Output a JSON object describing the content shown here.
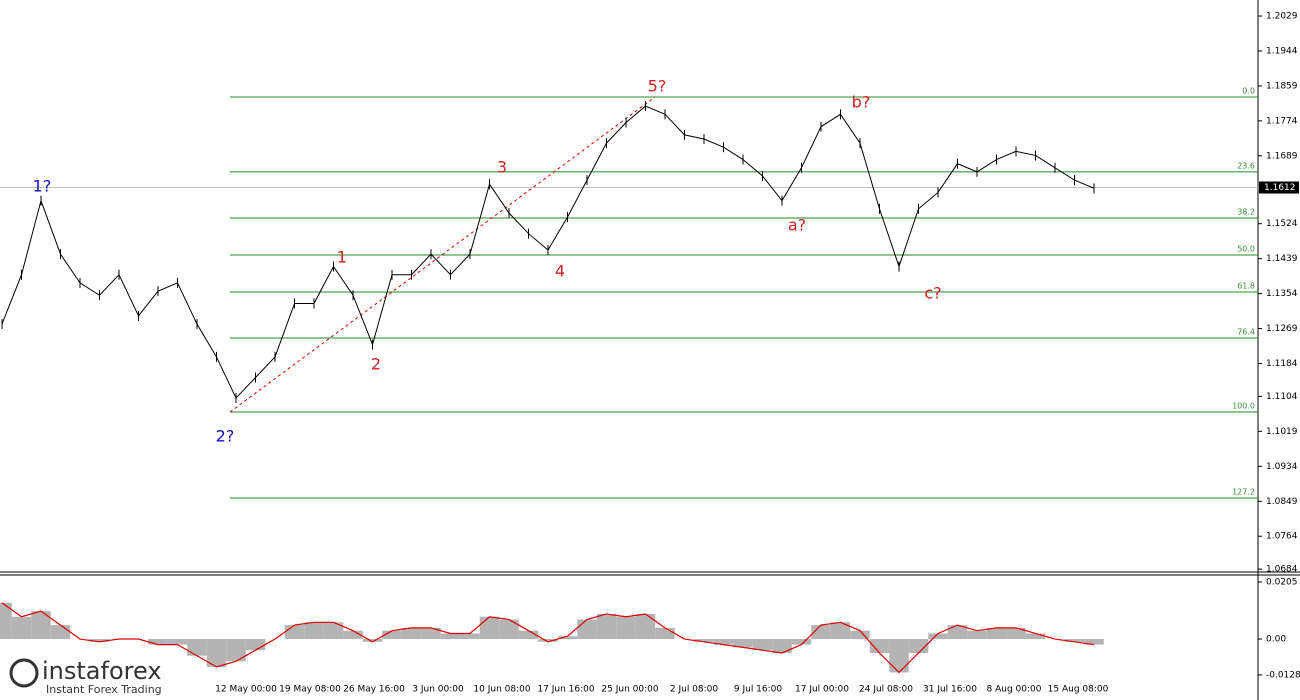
{
  "chart_data": [
    {
      "type": "line",
      "series": [
        {
          "color": "#000000",
          "values": [
            1.128,
            1.14,
            1.158,
            1.145,
            1.138,
            1.135,
            1.14,
            1.13,
            1.136,
            1.138,
            1.128,
            1.12,
            1.11,
            1.115,
            1.12,
            1.133,
            1.133,
            1.142,
            1.135,
            1.123,
            1.14,
            1.14,
            1.145,
            1.14,
            1.145,
            1.162,
            1.155,
            1.15,
            1.146,
            1.154,
            1.163,
            1.172,
            1.177,
            1.181,
            1.179,
            1.174,
            1.173,
            1.171,
            1.168,
            1.164,
            1.158,
            1.166,
            1.176,
            1.179,
            1.172,
            1.156,
            1.142,
            1.156,
            1.16,
            1.167,
            1.165,
            1.168,
            1.17,
            1.169,
            1.166,
            1.163,
            1.161
          ]
        }
      ],
      "ylim": [
        1.0677,
        1.2068
      ],
      "yticks": [
        1.2029,
        1.1944,
        1.1859,
        1.1774,
        1.1689,
        1.1524,
        1.1439,
        1.1354,
        1.1269,
        1.1184,
        1.1104,
        1.1019,
        1.0934,
        1.0849,
        1.0764,
        1.0684
      ],
      "last_price": 1.1612,
      "fib_levels": [
        {
          "value": 1.1832,
          "label": "0.0"
        },
        {
          "value": 1.165,
          "label": "23.6"
        },
        {
          "value": 1.1538,
          "label": "38.2"
        },
        {
          "value": 1.1448,
          "label": "50.0"
        },
        {
          "value": 1.1358,
          "label": "61.8"
        },
        {
          "value": 1.1246,
          "label": "76.4"
        },
        {
          "value": 1.1066,
          "label": "100.0"
        },
        {
          "value": 1.0857,
          "label": "127.2"
        }
      ],
      "fib_color": "#228b22",
      "annotations": [
        {
          "text": "1?",
          "color": "#1010c0"
        },
        {
          "text": "2?",
          "color": "#1010c0"
        },
        {
          "text": "1",
          "color": "#d02020"
        },
        {
          "text": "2",
          "color": "#d02020"
        },
        {
          "text": "3",
          "color": "#d02020"
        },
        {
          "text": "4",
          "color": "#d02020"
        },
        {
          "text": "5?",
          "color": "#d02020"
        },
        {
          "text": "a?",
          "color": "#d02020"
        },
        {
          "text": "b?",
          "color": "#d02020"
        },
        {
          "text": "c?",
          "color": "#d02020"
        }
      ],
      "time_labels": [
        "12 May 00:00",
        "19 May 08:00",
        "26 May 16:00",
        "3 Jun 00:00",
        "10 Jun 08:00",
        "17 Jun 16:00",
        "25 Jun 00:00",
        "2 Jul 08:00",
        "9 Jul 16:00",
        "17 Jul 00:00",
        "24 Jul 08:00",
        "31 Jul 16:00",
        "8 Aug 00:00",
        "15 Aug 08:00"
      ]
    },
    {
      "type": "histogram",
      "series": [
        {
          "color": "#b4b4b4",
          "line_color": "#e00000",
          "values": [
            0.013,
            0.008,
            0.01,
            0.005,
            0.0,
            -0.001,
            0.0,
            0.0,
            -0.002,
            -0.002,
            -0.006,
            -0.01,
            -0.008,
            -0.004,
            0.0,
            0.005,
            0.006,
            0.006,
            0.003,
            -0.001,
            0.003,
            0.004,
            0.004,
            0.002,
            0.002,
            0.008,
            0.007,
            0.003,
            -0.001,
            0.001,
            0.007,
            0.009,
            0.008,
            0.009,
            0.004,
            0.0,
            -0.001,
            -0.002,
            -0.003,
            -0.004,
            -0.005,
            -0.002,
            0.005,
            0.006,
            0.003,
            -0.005,
            -0.012,
            -0.005,
            0.002,
            0.005,
            0.003,
            0.004,
            0.004,
            0.002,
            0.0,
            -0.001,
            -0.002
          ]
        }
      ],
      "ylim": [
        -0.0201,
        0.023
      ],
      "yticks": [
        0.0205,
        {
          "value": 0,
          "label": "0.00"
        },
        -0.01289
      ]
    }
  ],
  "watermark": {
    "brand": "instaforex",
    "tagline": "Instant Forex Trading"
  }
}
